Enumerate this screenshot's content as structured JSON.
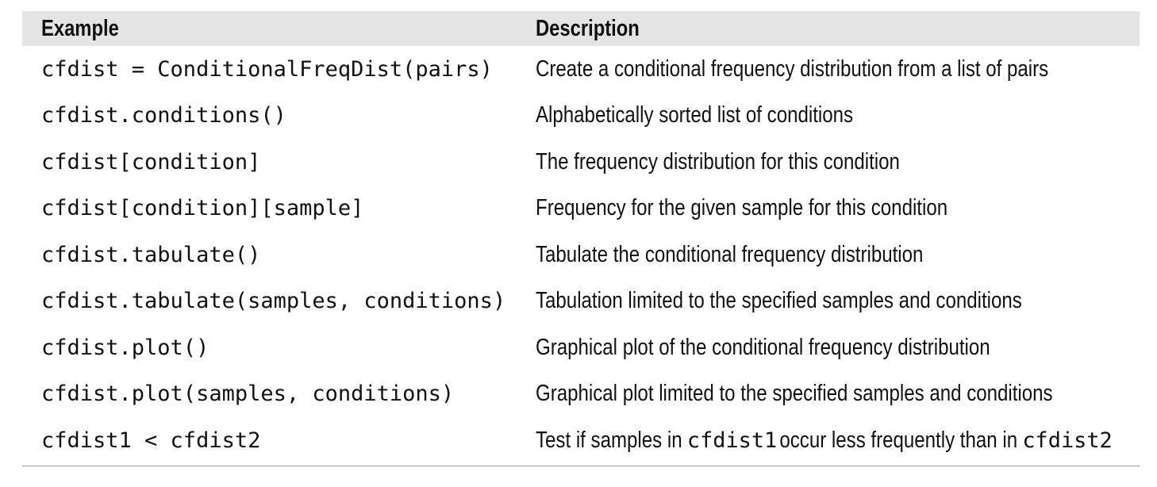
{
  "table": {
    "headers": {
      "example": "Example",
      "description": "Description"
    },
    "rows": [
      {
        "example": "cfdist = ConditionalFreqDist(pairs)",
        "description": "Create a conditional frequency distribution from a list of pairs"
      },
      {
        "example": "cfdist.conditions()",
        "description": "Alphabetically sorted list of conditions"
      },
      {
        "example": "cfdist[condition]",
        "description": "The frequency distribution for this condition"
      },
      {
        "example": "cfdist[condition][sample]",
        "description": "Frequency for the given sample for this condition"
      },
      {
        "example": "cfdist.tabulate()",
        "description": "Tabulate the conditional frequency distribution"
      },
      {
        "example": "cfdist.tabulate(samples, conditions)",
        "description": "Tabulation limited to the specified samples and conditions"
      },
      {
        "example": "cfdist.plot()",
        "description": "Graphical plot of the conditional frequency distribution"
      },
      {
        "example": "cfdist.plot(samples, conditions)",
        "description": "Graphical plot limited to the specified samples and conditions"
      },
      {
        "example": "cfdist1 < cfdist2",
        "description_parts": {
          "pre": "Test if samples in ",
          "code1": "cfdist1",
          "mid": " occur less frequently than in ",
          "code2": "cfdist2"
        }
      }
    ]
  }
}
